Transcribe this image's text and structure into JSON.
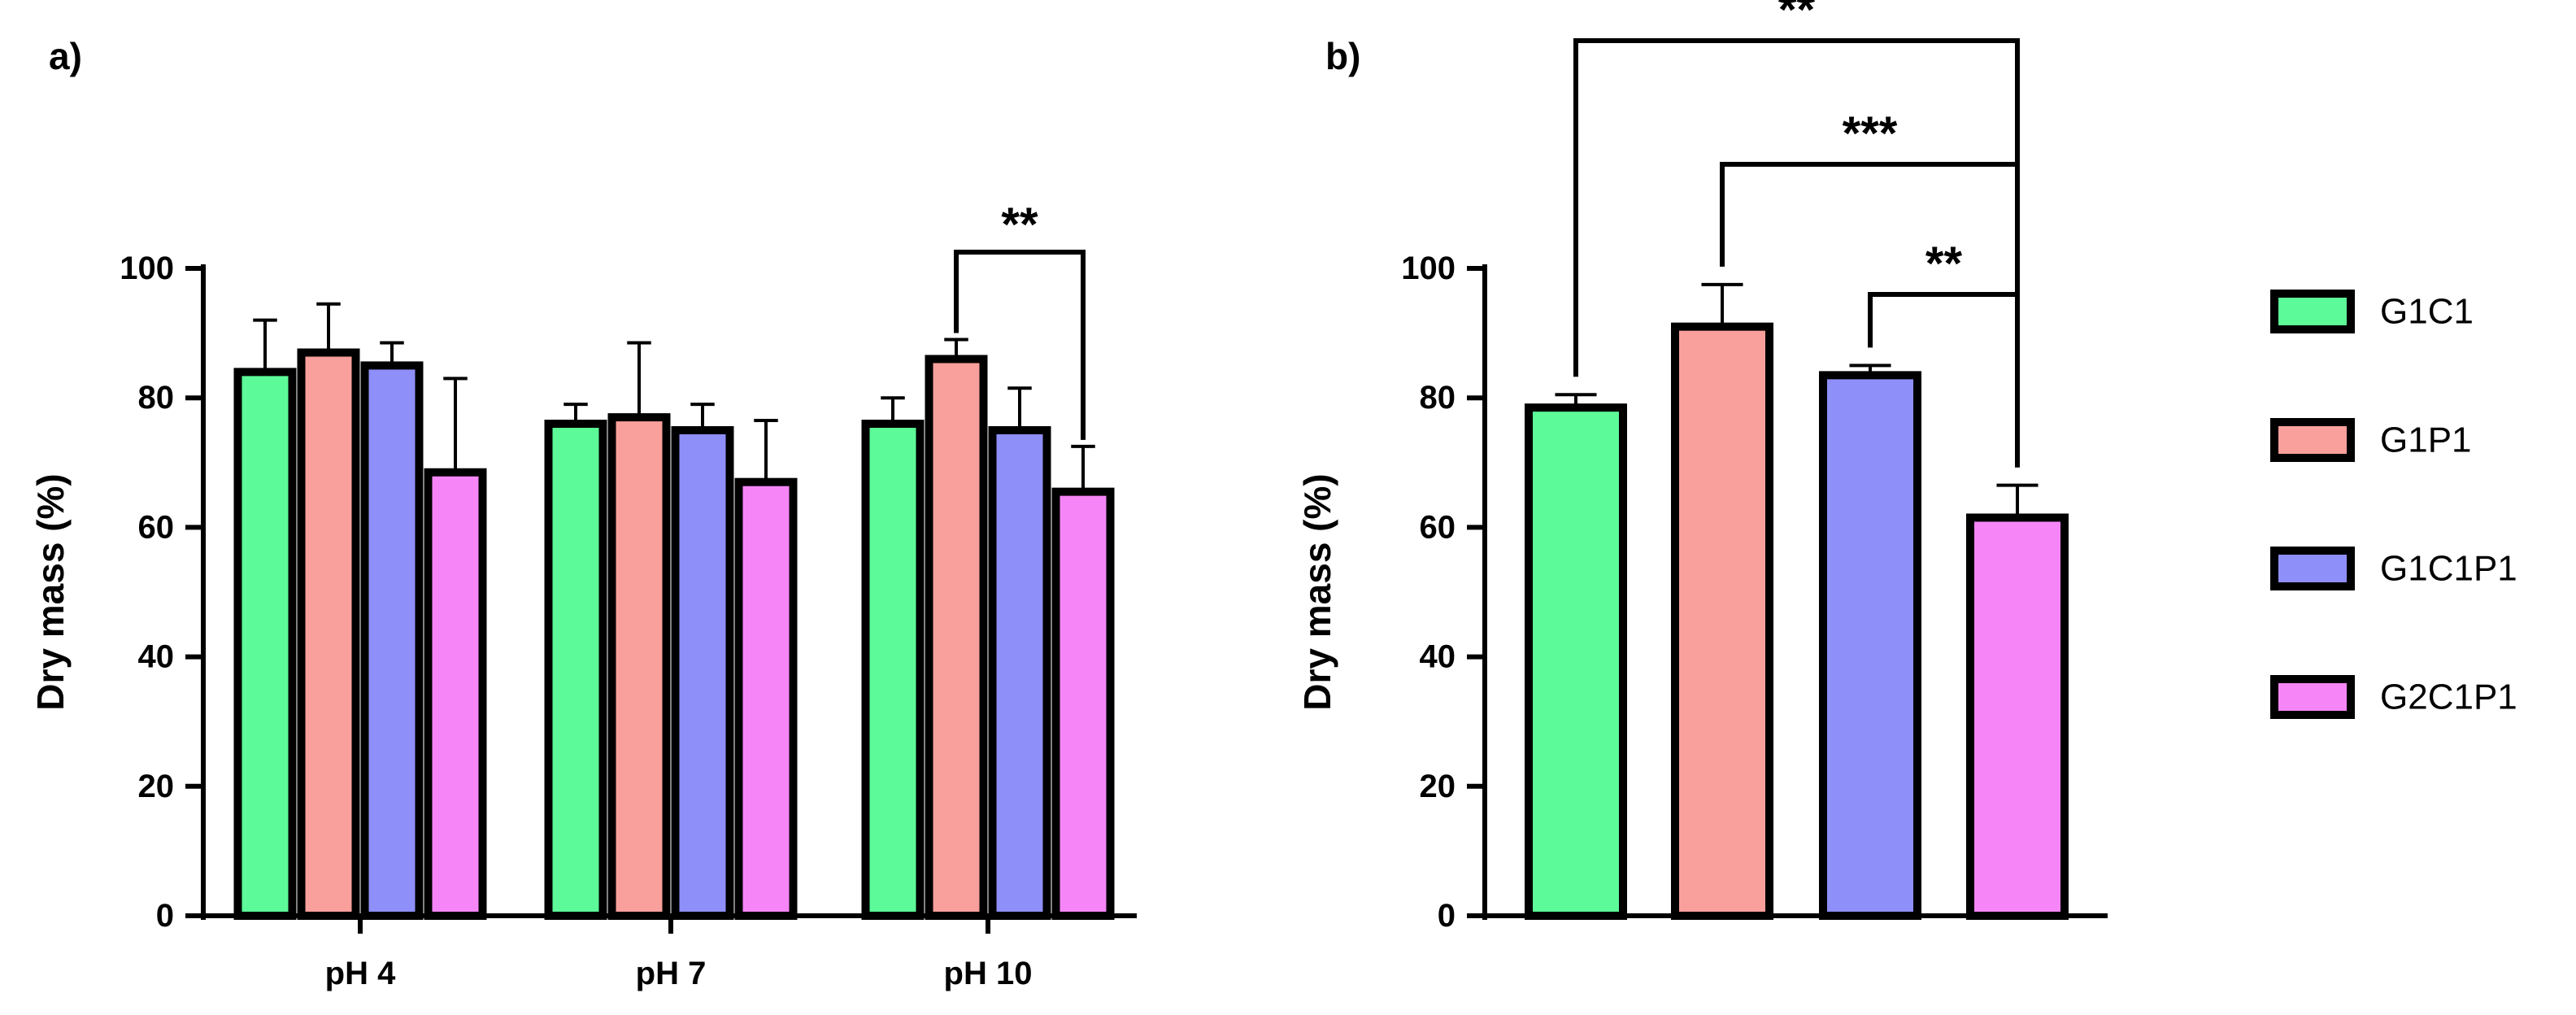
{
  "chart_data": [
    {
      "panel_label": "a)",
      "type": "bar",
      "ylabel": "Dry mass (%)",
      "ylim": [
        0,
        100
      ],
      "yticks": [
        "0",
        "20",
        "40",
        "60",
        "80",
        "100"
      ],
      "categories": [
        "pH 4",
        "pH 7",
        "pH 10"
      ],
      "series": [
        {
          "name": "G1C1",
          "values": [
            84,
            76,
            76
          ],
          "errors": [
            8,
            3,
            4
          ]
        },
        {
          "name": "G1P1",
          "values": [
            87,
            77,
            86
          ],
          "errors": [
            7.5,
            11.5,
            3
          ]
        },
        {
          "name": "G1C1P1",
          "values": [
            85,
            75,
            75
          ],
          "errors": [
            3.5,
            4,
            6.5
          ]
        },
        {
          "name": "G2C1P1",
          "values": [
            68.5,
            67,
            65.5
          ],
          "errors": [
            14.5,
            9.5,
            7
          ]
        }
      ],
      "significance": [
        {
          "label": "**",
          "category": "pH 10",
          "from_series": "G1P1",
          "to_series": "G2C1P1"
        }
      ]
    },
    {
      "panel_label": "b)",
      "type": "bar",
      "ylabel": "Dry mass (%)",
      "ylim": [
        0,
        100
      ],
      "yticks": [
        "0",
        "20",
        "40",
        "60",
        "80",
        "100"
      ],
      "categories": [
        "G1C1",
        "G1P1",
        "G1C1P1",
        "G2C1P1"
      ],
      "values": [
        78.5,
        91,
        83.5,
        61.5
      ],
      "errors": [
        2,
        6.5,
        1.5,
        5
      ],
      "significance": [
        {
          "label": "**",
          "from": "G1C1",
          "to": "G2C1P1"
        },
        {
          "label": "***",
          "from": "G1P1",
          "to": "G2C1P1"
        },
        {
          "label": "**",
          "from": "G1C1P1",
          "to": "G2C1P1"
        }
      ]
    }
  ],
  "legend": {
    "placement": "right",
    "items": [
      {
        "label": "G1C1",
        "color": "#5cfa98"
      },
      {
        "label": "G1P1",
        "color": "#f9a09c"
      },
      {
        "label": "G1C1P1",
        "color": "#8f8ff9"
      },
      {
        "label": "G2C1P1",
        "color": "#f686f7"
      }
    ]
  }
}
